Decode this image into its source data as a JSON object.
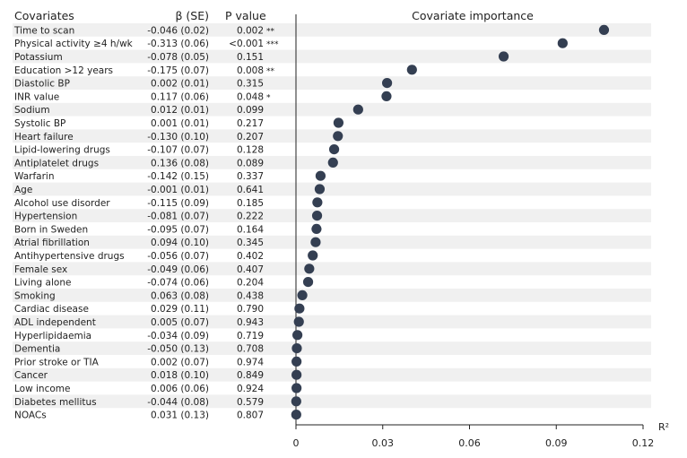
{
  "headers": {
    "covariates": "Covariates",
    "beta": "β (SE)",
    "pvalue": "P value",
    "importance": "Covariate importance"
  },
  "chart_data": {
    "type": "scatter",
    "title": "Covariate importance",
    "xlabel": "R²",
    "xlim": [
      0,
      0.12
    ],
    "xticks": [
      "0",
      "0.03",
      "0.06",
      "0.09",
      "0.12"
    ],
    "point_color": "#343f52",
    "stripe_color": "#f0f0f0",
    "rows": [
      {
        "covariate": "Time to scan",
        "beta": "-0.046 (0.02)",
        "p": "0.002",
        "sig": "**",
        "r2": 0.1065
      },
      {
        "covariate": "Physical activity ≥4 h/wk",
        "beta": "-0.313 (0.06)",
        "p": "<0.001",
        "sig": "***",
        "r2": 0.0922
      },
      {
        "covariate": "Potassium",
        "beta": "-0.078 (0.05)",
        "p": "0.151",
        "sig": "",
        "r2": 0.0718
      },
      {
        "covariate": "Education >12 years",
        "beta": "-0.175 (0.07)",
        "p": "0.008",
        "sig": "**",
        "r2": 0.0401
      },
      {
        "covariate": "Diastolic BP",
        "beta": "0.002 (0.01)",
        "p": "0.315",
        "sig": "",
        "r2": 0.0315
      },
      {
        "covariate": "INR value",
        "beta": "0.117 (0.06)",
        "p": "0.048",
        "sig": "*",
        "r2": 0.0313
      },
      {
        "covariate": "Sodium",
        "beta": "0.012 (0.01)",
        "p": "0.099",
        "sig": "",
        "r2": 0.0215
      },
      {
        "covariate": "Systolic BP",
        "beta": "0.001 (0.01)",
        "p": "0.217",
        "sig": "",
        "r2": 0.0147
      },
      {
        "covariate": "Heart failure",
        "beta": "-0.130 (0.10)",
        "p": "0.207",
        "sig": "",
        "r2": 0.0145
      },
      {
        "covariate": "Lipid-lowering drugs",
        "beta": "-0.107 (0.07)",
        "p": "0.128",
        "sig": "",
        "r2": 0.0132
      },
      {
        "covariate": "Antiplatelet drugs",
        "beta": "0.136 (0.08)",
        "p": "0.089",
        "sig": "",
        "r2": 0.0128
      },
      {
        "covariate": "Warfarin",
        "beta": "-0.142 (0.15)",
        "p": "0.337",
        "sig": "",
        "r2": 0.0085
      },
      {
        "covariate": "Age",
        "beta": "-0.001 (0.01)",
        "p": "0.641",
        "sig": "",
        "r2": 0.0082
      },
      {
        "covariate": "Alcohol use disorder",
        "beta": "-0.115 (0.09)",
        "p": "0.185",
        "sig": "",
        "r2": 0.0074
      },
      {
        "covariate": "Hypertension",
        "beta": "-0.081 (0.07)",
        "p": "0.222",
        "sig": "",
        "r2": 0.0073
      },
      {
        "covariate": "Born in Sweden",
        "beta": "-0.095 (0.07)",
        "p": "0.164",
        "sig": "",
        "r2": 0.0071
      },
      {
        "covariate": "Atrial fibrillation",
        "beta": "0.094 (0.10)",
        "p": "0.345",
        "sig": "",
        "r2": 0.0068
      },
      {
        "covariate": "Antihypertensive drugs",
        "beta": "-0.056 (0.07)",
        "p": "0.402",
        "sig": "",
        "r2": 0.0058
      },
      {
        "covariate": "Female sex",
        "beta": "-0.049 (0.06)",
        "p": "0.407",
        "sig": "",
        "r2": 0.0046
      },
      {
        "covariate": "Living alone",
        "beta": "-0.074 (0.06)",
        "p": "0.204",
        "sig": "",
        "r2": 0.0042
      },
      {
        "covariate": "Smoking",
        "beta": "0.063 (0.08)",
        "p": "0.438",
        "sig": "",
        "r2": 0.0022
      },
      {
        "covariate": "Cardiac disease",
        "beta": "0.029 (0.11)",
        "p": "0.790",
        "sig": "",
        "r2": 0.0012
      },
      {
        "covariate": "ADL independent",
        "beta": "0.005 (0.07)",
        "p": "0.943",
        "sig": "",
        "r2": 0.001
      },
      {
        "covariate": "Hyperlipidaemia",
        "beta": "-0.034 (0.09)",
        "p": "0.719",
        "sig": "",
        "r2": 0.0005
      },
      {
        "covariate": "Dementia",
        "beta": "-0.050 (0.13)",
        "p": "0.708",
        "sig": "",
        "r2": 0.0003
      },
      {
        "covariate": "Prior stroke or TIA",
        "beta": "0.002 (0.07)",
        "p": "0.974",
        "sig": "",
        "r2": 0.0002
      },
      {
        "covariate": "Cancer",
        "beta": "0.018 (0.10)",
        "p": "0.849",
        "sig": "",
        "r2": 0.0002
      },
      {
        "covariate": "Low income",
        "beta": "0.006 (0.06)",
        "p": "0.924",
        "sig": "",
        "r2": 0.0002
      },
      {
        "covariate": "Diabetes mellitus",
        "beta": "-0.044 (0.08)",
        "p": "0.579",
        "sig": "",
        "r2": 0.0001
      },
      {
        "covariate": "NOACs",
        "beta": "0.031 (0.13)",
        "p": "0.807",
        "sig": "",
        "r2": 0.0001
      }
    ]
  }
}
